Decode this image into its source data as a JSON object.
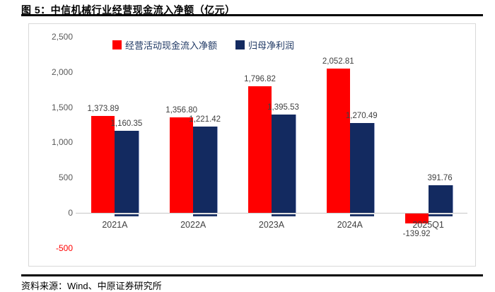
{
  "figure": {
    "title": "图 5：中信机械行业经营现金流入净额（亿元）",
    "source_label": "资料来源：",
    "source_wind": "Wind",
    "source_rest": "、中原证券研究所"
  },
  "chart_data": {
    "type": "bar",
    "title": "中信机械行业经营现金流入净额（亿元）",
    "categories": [
      "2021A",
      "2022A",
      "2023A",
      "2024A",
      "2025Q1"
    ],
    "series": [
      {
        "name": "经营活动现金流入净额",
        "color": "#ff0000",
        "values": [
          1373.89,
          1356.8,
          1796.82,
          2052.81,
          -139.92
        ],
        "labels": [
          "1,373.89",
          "1,356.80",
          "1,796.82",
          "2,052.81",
          "-139.92"
        ]
      },
      {
        "name": "归母净利润",
        "color": "#132a60",
        "values": [
          1160.35,
          1221.42,
          1395.53,
          1270.49,
          391.76
        ],
        "labels": [
          "1,160.35",
          "1,221.42",
          "1,395.53",
          "1,270.49",
          "391.76"
        ]
      }
    ],
    "ylim": [
      -500,
      2500
    ],
    "yticks": [
      2500,
      2000,
      1500,
      1000,
      500,
      0,
      -500
    ],
    "ytick_labels": [
      "2,500",
      "2,000",
      "1,500",
      "1,000",
      "500",
      "0",
      "-500"
    ],
    "legend_position": "top",
    "grid": false,
    "negative_tick_color": "#ff0000"
  },
  "colors": {
    "series_cash": "#ff0000",
    "series_profit": "#132a60",
    "profit_edge": "#97a3c9",
    "axis_line": "#c6c6c6",
    "tick_text": "#595959",
    "label_text": "#404040",
    "legend_text": "#1f3864"
  }
}
